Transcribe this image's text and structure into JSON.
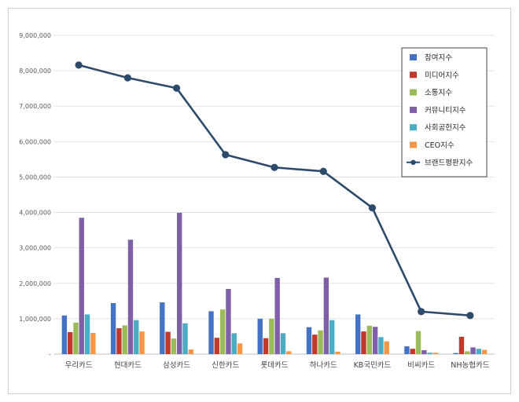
{
  "chart_data": {
    "type": "bar",
    "title": "",
    "xlabel": "",
    "ylabel": "",
    "ylim": [
      0,
      9000000
    ],
    "yticks": [
      "-",
      "1,000,000",
      "2,000,000",
      "3,000,000",
      "4,000,000",
      "5,000,000",
      "6,000,000",
      "7,000,000",
      "8,000,000",
      "9,000,000"
    ],
    "grid": true,
    "legend_position": "top-right",
    "categories": [
      "우리카드",
      "현대카드",
      "삼성카드",
      "신한카드",
      "롯데카드",
      "하나카드",
      "KB국민카드",
      "비씨카드",
      "NH농협카드"
    ],
    "series": [
      {
        "name": "참여지수",
        "type": "bar",
        "color": "#4472c4",
        "values": [
          1090000,
          1440000,
          1460000,
          1210000,
          1000000,
          760000,
          1120000,
          220000,
          30000
        ]
      },
      {
        "name": "미디어지수",
        "type": "bar",
        "color": "#c0392b",
        "values": [
          620000,
          730000,
          630000,
          460000,
          450000,
          550000,
          640000,
          150000,
          490000
        ]
      },
      {
        "name": "소통지수",
        "type": "bar",
        "color": "#9bbb59",
        "values": [
          890000,
          810000,
          440000,
          1260000,
          1000000,
          670000,
          800000,
          650000,
          80000
        ]
      },
      {
        "name": "커뮤니티지수",
        "type": "bar",
        "color": "#7f5fa8",
        "values": [
          3850000,
          3230000,
          3990000,
          1840000,
          2150000,
          2160000,
          770000,
          110000,
          190000
        ]
      },
      {
        "name": "사회공헌지수",
        "type": "bar",
        "color": "#4bacc6",
        "values": [
          1120000,
          960000,
          870000,
          590000,
          590000,
          960000,
          480000,
          40000,
          150000
        ]
      },
      {
        "name": "CEO지수",
        "type": "bar",
        "color": "#f79646",
        "values": [
          600000,
          640000,
          130000,
          300000,
          80000,
          70000,
          360000,
          40000,
          120000
        ]
      },
      {
        "name": "브랜드평판지수",
        "type": "line",
        "color": "#2e4a6b",
        "values": [
          8160000,
          7800000,
          7510000,
          5630000,
          5270000,
          5160000,
          4130000,
          1200000,
          1090000
        ]
      }
    ]
  }
}
